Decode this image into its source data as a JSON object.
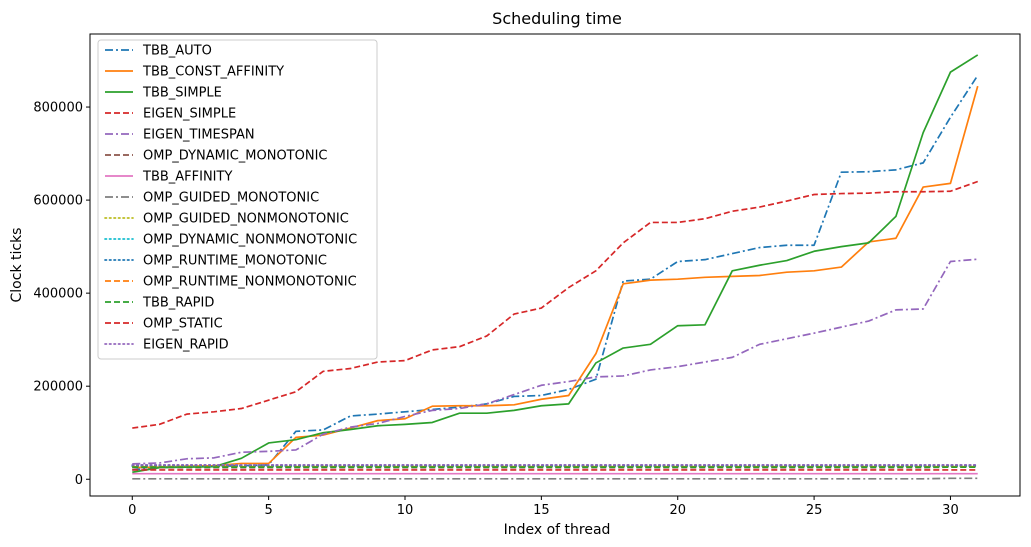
{
  "chart_data": {
    "type": "line",
    "title": "Scheduling time",
    "xlabel": "Index of thread",
    "ylabel": "Clock ticks",
    "xlim": [
      -1.55,
      32.55
    ],
    "ylim": [
      -36000,
      957000
    ],
    "xticks": [
      0,
      5,
      10,
      15,
      20,
      25,
      30
    ],
    "xtick_labels": [
      "0",
      "5",
      "10",
      "15",
      "20",
      "25",
      "30"
    ],
    "yticks": [
      0,
      200000,
      400000,
      600000,
      800000
    ],
    "ytick_labels": [
      "0",
      "200000",
      "400000",
      "600000",
      "800000"
    ],
    "grid": false,
    "legend_position": "upper-left",
    "x": [
      0,
      1,
      2,
      3,
      4,
      5,
      6,
      7,
      8,
      9,
      10,
      11,
      12,
      13,
      14,
      15,
      16,
      17,
      18,
      19,
      20,
      21,
      22,
      23,
      24,
      25,
      26,
      27,
      28,
      29,
      30,
      31
    ],
    "series": [
      {
        "name": "TBB_AUTO",
        "color": "#1f77b4",
        "style": "dashdot",
        "values": [
          20000,
          25000,
          27000,
          28000,
          29000,
          31000,
          103000,
          106000,
          136000,
          140000,
          145000,
          150000,
          155000,
          162000,
          178000,
          180000,
          193000,
          215000,
          426000,
          430000,
          468000,
          472000,
          485000,
          498000,
          503000,
          503000,
          660000,
          661000,
          665000,
          680000,
          778000,
          868000
        ]
      },
      {
        "name": "TBB_CONST_AFFINITY",
        "color": "#ff7f0e",
        "style": "solid",
        "values": [
          25000,
          26000,
          28000,
          29000,
          34000,
          34000,
          90000,
          95000,
          110000,
          126000,
          130000,
          157000,
          158000,
          158000,
          160000,
          172000,
          180000,
          270000,
          420000,
          428000,
          430000,
          434000,
          436000,
          438000,
          445000,
          448000,
          456000,
          510000,
          518000,
          628000,
          636000,
          845000
        ]
      },
      {
        "name": "TBB_SIMPLE",
        "color": "#2ca02c",
        "style": "solid",
        "values": [
          15000,
          25000,
          26000,
          27000,
          45000,
          78000,
          85000,
          100000,
          107000,
          115000,
          118000,
          122000,
          142000,
          142000,
          148000,
          158000,
          162000,
          250000,
          282000,
          290000,
          330000,
          332000,
          448000,
          460000,
          470000,
          490000,
          500000,
          508000,
          565000,
          745000,
          875000,
          912000
        ]
      },
      {
        "name": "EIGEN_SIMPLE",
        "color": "#d62728",
        "style": "dashed",
        "values": [
          110000,
          118000,
          140000,
          145000,
          152000,
          170000,
          188000,
          232000,
          238000,
          252000,
          255000,
          278000,
          285000,
          308000,
          355000,
          368000,
          412000,
          448000,
          508000,
          552000,
          552000,
          560000,
          576000,
          585000,
          598000,
          612000,
          614000,
          615000,
          618000,
          618000,
          619000,
          640000
        ]
      },
      {
        "name": "EIGEN_TIMESPAN",
        "color": "#9467bd",
        "style": "dashdot",
        "values": [
          33000,
          35000,
          44000,
          46000,
          58000,
          60000,
          63000,
          97000,
          112000,
          120000,
          135000,
          148000,
          152000,
          162000,
          182000,
          202000,
          210000,
          220000,
          222000,
          235000,
          242000,
          252000,
          262000,
          290000,
          302000,
          314000,
          327000,
          340000,
          364000,
          366000,
          468000,
          473000
        ]
      },
      {
        "name": "OMP_DYNAMIC_MONOTONIC",
        "color": "#8c564b",
        "style": "dashed",
        "values": [
          25000,
          25000,
          25000,
          25000,
          25000,
          25000,
          25000,
          25000,
          25000,
          25000,
          25000,
          25000,
          25000,
          25000,
          25000,
          25000,
          25000,
          25000,
          25000,
          25000,
          25000,
          25000,
          25000,
          25000,
          25000,
          25000,
          25000,
          25000,
          25000,
          25000,
          26000,
          26000
        ]
      },
      {
        "name": "TBB_AFFINITY",
        "color": "#e377c2",
        "style": "solid",
        "values": [
          12000,
          12000,
          12000,
          12000,
          12000,
          12000,
          12000,
          12000,
          12000,
          12000,
          12000,
          12000,
          12000,
          12000,
          12000,
          12000,
          12000,
          12000,
          12000,
          12000,
          12000,
          12000,
          12000,
          12000,
          12000,
          12000,
          12000,
          12000,
          12000,
          12000,
          12000,
          12000
        ]
      },
      {
        "name": "OMP_GUIDED_MONOTONIC",
        "color": "#7f7f7f",
        "style": "dashdot",
        "values": [
          1000,
          1000,
          1000,
          1000,
          1000,
          1000,
          1000,
          1000,
          1000,
          1000,
          1000,
          1000,
          1000,
          1000,
          1000,
          1000,
          1000,
          1000,
          1000,
          1000,
          1000,
          1000,
          1000,
          1000,
          1000,
          1000,
          1000,
          1000,
          1000,
          1000,
          2000,
          2000
        ]
      },
      {
        "name": "OMP_GUIDED_NONMONOTONIC",
        "color": "#bcbd22",
        "style": "dotted",
        "values": [
          30000,
          30000,
          30000,
          30000,
          30000,
          30000,
          30000,
          30000,
          30000,
          30000,
          30000,
          30000,
          30000,
          30000,
          30000,
          30000,
          30000,
          30000,
          30000,
          30000,
          30000,
          30000,
          30000,
          30000,
          30000,
          30000,
          30000,
          30000,
          30000,
          30000,
          30000,
          30000
        ]
      },
      {
        "name": "OMP_DYNAMIC_NONMONOTONIC",
        "color": "#17becf",
        "style": "dotted",
        "values": [
          28000,
          28000,
          28000,
          28000,
          28000,
          28000,
          28000,
          28000,
          28000,
          28000,
          28000,
          28000,
          28000,
          28000,
          28000,
          28000,
          28000,
          28000,
          28000,
          28000,
          28000,
          28000,
          28000,
          28000,
          28000,
          28000,
          28000,
          28000,
          28000,
          28000,
          28000,
          28000
        ]
      },
      {
        "name": "OMP_RUNTIME_MONOTONIC",
        "color": "#1f77b4",
        "style": "dotted",
        "values": [
          29000,
          29000,
          29000,
          29000,
          29000,
          29000,
          29000,
          29000,
          29000,
          29000,
          29000,
          29000,
          29000,
          29000,
          29000,
          29000,
          29000,
          29000,
          29000,
          29000,
          29000,
          29000,
          29000,
          29000,
          29000,
          29000,
          29000,
          29000,
          29000,
          29000,
          29000,
          29000
        ]
      },
      {
        "name": "OMP_RUNTIME_NONMONOTONIC",
        "color": "#ff7f0e",
        "style": "dashed",
        "values": [
          27000,
          27000,
          27000,
          27000,
          27000,
          27000,
          27000,
          27000,
          27000,
          27000,
          27000,
          27000,
          27000,
          27000,
          27000,
          27000,
          27000,
          27000,
          27000,
          27000,
          27000,
          27000,
          27000,
          27000,
          27000,
          27000,
          27000,
          27000,
          27000,
          27000,
          27000,
          27000
        ]
      },
      {
        "name": "TBB_RAPID",
        "color": "#2ca02c",
        "style": "dashed",
        "values": [
          26000,
          26000,
          26000,
          26000,
          26000,
          26000,
          26000,
          26000,
          26000,
          26000,
          26000,
          26000,
          26000,
          26000,
          26000,
          26000,
          26000,
          26000,
          26000,
          26000,
          26000,
          26000,
          26000,
          26000,
          26000,
          26000,
          26000,
          26000,
          26000,
          26000,
          26000,
          26000
        ]
      },
      {
        "name": "OMP_STATIC",
        "color": "#d62728",
        "style": "dashed",
        "values": [
          20000,
          20000,
          20000,
          20000,
          20000,
          20000,
          20000,
          20000,
          20000,
          20000,
          20000,
          20000,
          20000,
          20000,
          20000,
          20000,
          20000,
          20000,
          20000,
          20000,
          20000,
          20000,
          20000,
          20000,
          20000,
          20000,
          20000,
          20000,
          20000,
          20000,
          20000,
          20000
        ]
      },
      {
        "name": "EIGEN_RAPID",
        "color": "#9467bd",
        "style": "dotted",
        "values": [
          31000,
          31000,
          31000,
          31000,
          31000,
          31000,
          31000,
          31000,
          31000,
          31000,
          31000,
          31000,
          31000,
          31000,
          31000,
          31000,
          31000,
          31000,
          31000,
          31000,
          31000,
          31000,
          31000,
          31000,
          31000,
          31000,
          31000,
          31000,
          31000,
          31000,
          31000,
          31000
        ]
      }
    ]
  }
}
